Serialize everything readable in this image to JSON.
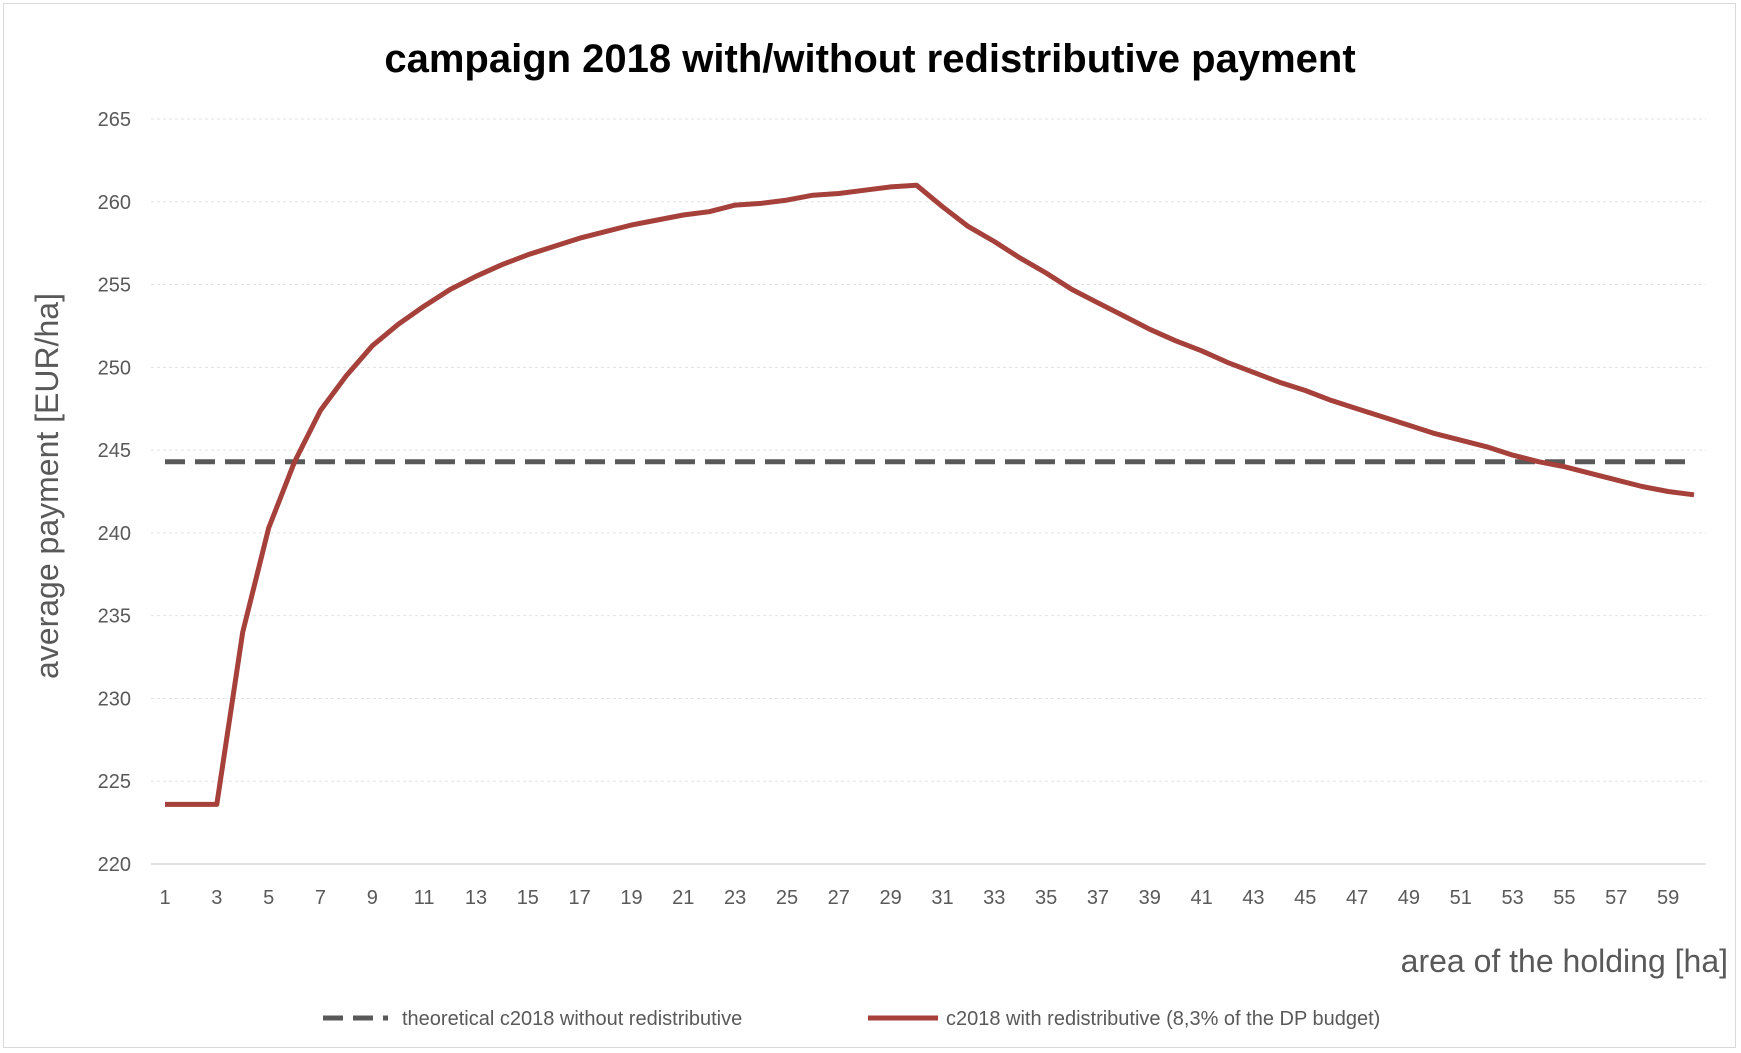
{
  "chart_data": {
    "type": "line",
    "title": "campaign 2018 with/without redistributive payment",
    "xlabel": "area of the holding [ha]",
    "ylabel": "average payment  [EUR/ha]",
    "x": [
      1,
      2,
      3,
      4,
      5,
      6,
      7,
      8,
      9,
      10,
      11,
      12,
      13,
      14,
      15,
      16,
      17,
      18,
      19,
      20,
      21,
      22,
      23,
      24,
      25,
      26,
      27,
      28,
      29,
      30,
      31,
      32,
      33,
      34,
      35,
      36,
      37,
      38,
      39,
      40,
      41,
      42,
      43,
      44,
      45,
      46,
      47,
      48,
      49,
      50,
      51,
      52,
      53,
      54,
      55,
      56,
      57,
      58,
      59,
      60
    ],
    "x_tick_labels": [
      "1",
      "3",
      "5",
      "7",
      "9",
      "11",
      "13",
      "15",
      "17",
      "19",
      "21",
      "23",
      "25",
      "27",
      "29",
      "31",
      "33",
      "35",
      "37",
      "39",
      "41",
      "43",
      "45",
      "47",
      "49",
      "51",
      "53",
      "55",
      "57",
      "59"
    ],
    "ylim": [
      220,
      265
    ],
    "y_ticks": [
      220,
      225,
      230,
      235,
      240,
      245,
      250,
      255,
      260,
      265
    ],
    "grid": true,
    "legend_position": "bottom",
    "series": [
      {
        "name": "theoretical c2018 without redistributive",
        "style": "dashed",
        "color": "#595959",
        "values": [
          244.3,
          244.3,
          244.3,
          244.3,
          244.3,
          244.3,
          244.3,
          244.3,
          244.3,
          244.3,
          244.3,
          244.3,
          244.3,
          244.3,
          244.3,
          244.3,
          244.3,
          244.3,
          244.3,
          244.3,
          244.3,
          244.3,
          244.3,
          244.3,
          244.3,
          244.3,
          244.3,
          244.3,
          244.3,
          244.3,
          244.3,
          244.3,
          244.3,
          244.3,
          244.3,
          244.3,
          244.3,
          244.3,
          244.3,
          244.3,
          244.3,
          244.3,
          244.3,
          244.3,
          244.3,
          244.3,
          244.3,
          244.3,
          244.3,
          244.3,
          244.3,
          244.3,
          244.3,
          244.3,
          244.3,
          244.3,
          244.3,
          244.3,
          244.3,
          244.3
        ]
      },
      {
        "name": "c2018 with redistributive (8,3% of the DP budget)",
        "style": "solid",
        "color": "#a5403a",
        "values": [
          223.6,
          223.6,
          223.6,
          234.0,
          240.3,
          244.3,
          247.4,
          249.5,
          251.3,
          252.6,
          253.7,
          254.7,
          255.5,
          256.2,
          256.8,
          257.3,
          257.8,
          258.2,
          258.6,
          258.9,
          259.2,
          259.4,
          259.8,
          259.9,
          260.1,
          260.4,
          260.5,
          260.7,
          260.9,
          261.0,
          259.7,
          258.5,
          257.6,
          256.6,
          255.7,
          254.7,
          253.9,
          253.1,
          252.3,
          251.6,
          251.0,
          250.3,
          249.7,
          249.1,
          248.6,
          248.0,
          247.5,
          247.0,
          246.5,
          246.0,
          245.6,
          245.2,
          244.7,
          244.3,
          244.0,
          243.6,
          243.2,
          242.8,
          242.5,
          242.3
        ]
      }
    ]
  }
}
